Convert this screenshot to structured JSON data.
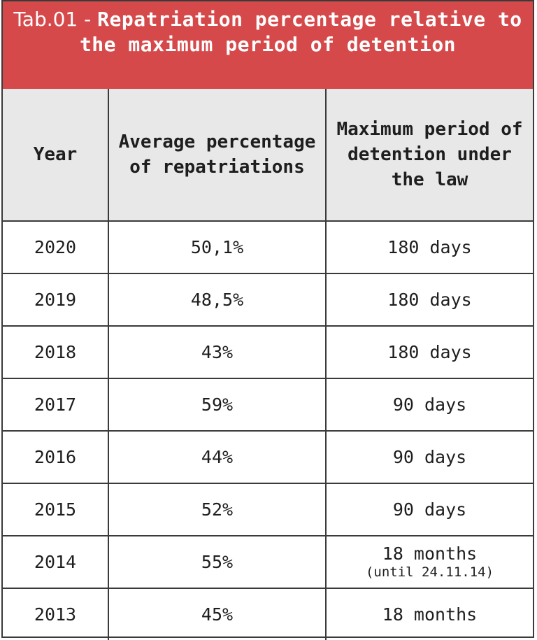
{
  "title": {
    "prefix": "Tab.01 - ",
    "main": "Repatriation percentage relative to the maximum period of detention"
  },
  "columns": {
    "year": "Year",
    "percentage": "Average percentage of repatriations",
    "max_period": "Maximum period of detention under the law"
  },
  "rows": [
    {
      "year": "2020",
      "percentage": "50,1%",
      "max_period": "180 days",
      "note": ""
    },
    {
      "year": "2019",
      "percentage": "48,5%",
      "max_period": "180 days",
      "note": ""
    },
    {
      "year": "2018",
      "percentage": "43%",
      "max_period": "180 days",
      "note": ""
    },
    {
      "year": "2017",
      "percentage": "59%",
      "max_period": "90 days",
      "note": ""
    },
    {
      "year": "2016",
      "percentage": "44%",
      "max_period": "90 days",
      "note": ""
    },
    {
      "year": "2015",
      "percentage": "52%",
      "max_period": "90 days",
      "note": ""
    },
    {
      "year": "2014",
      "percentage": "55%",
      "max_period": "18 months",
      "note": "(until 24.11.14)"
    },
    {
      "year": "2013",
      "percentage": "45%",
      "max_period": "18 months",
      "note": ""
    }
  ],
  "colors": {
    "title_background": "#d6494b",
    "header_background": "#e8e8e8",
    "border": "#3a3a3a"
  }
}
